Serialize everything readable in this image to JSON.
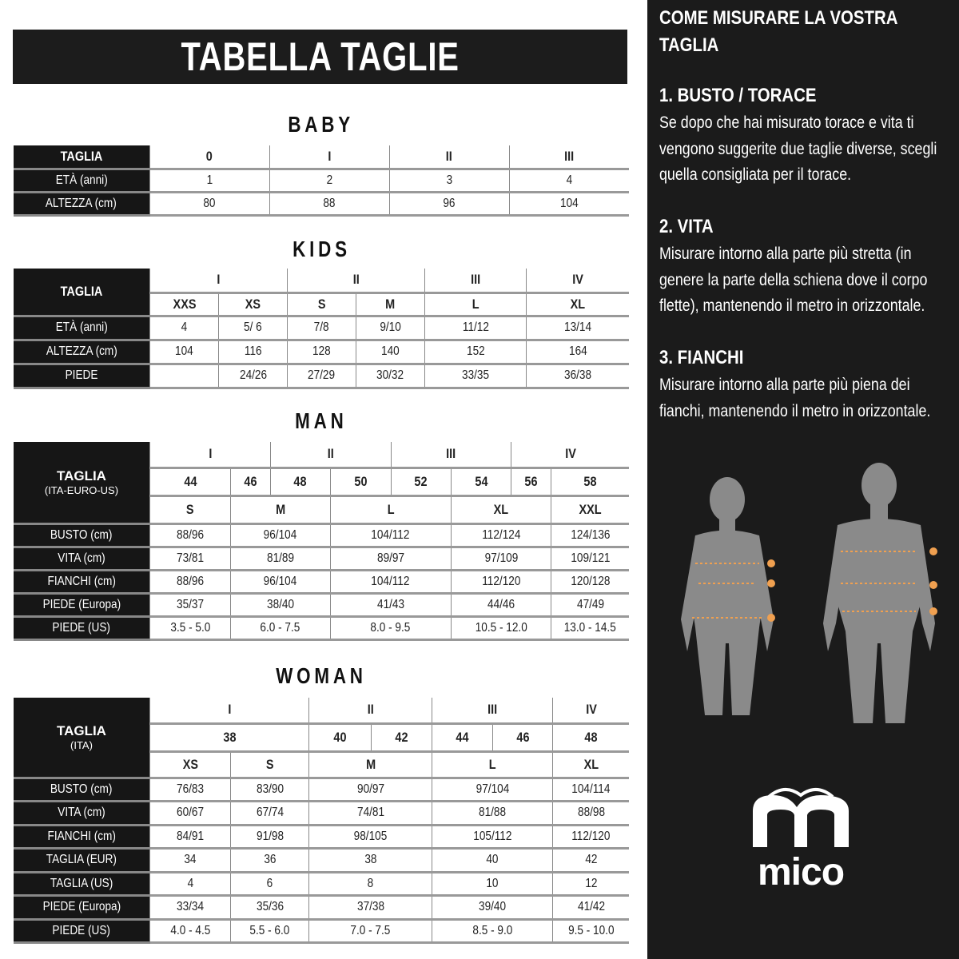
{
  "title": "TABELLA TAGLIE",
  "baby": {
    "heading": "BABY",
    "rows": [
      {
        "label": "TAGLIA",
        "cells": [
          "0",
          "I",
          "II",
          "III"
        ]
      },
      {
        "label": "ETÀ (anni)",
        "cells": [
          "1",
          "2",
          "3",
          "4"
        ]
      },
      {
        "label": "ALTEZZA (cm)",
        "cells": [
          "80",
          "88",
          "96",
          "104"
        ]
      }
    ]
  },
  "kids": {
    "heading": "KIDS",
    "taglia": "TAGLIA",
    "groups": [
      "I",
      "II",
      "III",
      "IV"
    ],
    "sizes": [
      "XXS",
      "XS",
      "S",
      "M",
      "L",
      "XL"
    ],
    "rows": [
      {
        "label": "ETÀ (anni)",
        "cells": [
          "4",
          "5/ 6",
          "7/8",
          "9/10",
          "11/12",
          "13/14"
        ]
      },
      {
        "label": "ALTEZZA (cm)",
        "cells": [
          "104",
          "116",
          "128",
          "140",
          "152",
          "164"
        ]
      },
      {
        "label": "PIEDE",
        "cells": [
          "",
          "24/26",
          "27/29",
          "30/32",
          "33/35",
          "36/38"
        ]
      }
    ]
  },
  "man": {
    "heading": "MAN",
    "taglia": "TAGLIA",
    "taglia_sub": "(ITA-EURO-US)",
    "groups": [
      "I",
      "II",
      "III",
      "IV"
    ],
    "numbers": [
      "44",
      "46",
      "48",
      "50",
      "52",
      "54",
      "56",
      "58"
    ],
    "sizes": [
      "S",
      "M",
      "L",
      "XL",
      "XXL"
    ],
    "rows": [
      {
        "label": "BUSTO (cm)",
        "cells": [
          "88/96",
          "96/104",
          "104/112",
          "112/124",
          "124/136"
        ]
      },
      {
        "label": "VITA (cm)",
        "cells": [
          "73/81",
          "81/89",
          "89/97",
          "97/109",
          "109/121"
        ]
      },
      {
        "label": "FIANCHI (cm)",
        "cells": [
          "88/96",
          "96/104",
          "104/112",
          "112/120",
          "120/128"
        ]
      },
      {
        "label": "PIEDE (Europa)",
        "cells": [
          "35/37",
          "38/40",
          "41/43",
          "44/46",
          "47/49"
        ]
      },
      {
        "label": "PIEDE (US)",
        "cells": [
          "3.5 - 5.0",
          "6.0 - 7.5",
          "8.0 - 9.5",
          "10.5 - 12.0",
          "13.0 - 14.5"
        ]
      }
    ]
  },
  "woman": {
    "heading": "WOMAN",
    "taglia": "TAGLIA",
    "taglia_sub": "(ITA)",
    "groups": [
      "I",
      "II",
      "III",
      "IV"
    ],
    "numbers": [
      "38",
      "40",
      "42",
      "44",
      "46",
      "48"
    ],
    "sizes": [
      "XS",
      "S",
      "M",
      "L",
      "XL"
    ],
    "rows": [
      {
        "label": "BUSTO (cm)",
        "cells": [
          "76/83",
          "83/90",
          "90/97",
          "97/104",
          "104/114"
        ]
      },
      {
        "label": "VITA (cm)",
        "cells": [
          "60/67",
          "67/74",
          "74/81",
          "81/88",
          "88/98"
        ]
      },
      {
        "label": "FIANCHI (cm)",
        "cells": [
          "84/91",
          "91/98",
          "98/105",
          "105/112",
          "112/120"
        ]
      },
      {
        "label": "TAGLIA (EUR)",
        "cells": [
          "34",
          "36",
          "38",
          "40",
          "42"
        ]
      },
      {
        "label": "TAGLIA (US)",
        "cells": [
          "4",
          "6",
          "8",
          "10",
          "12"
        ]
      },
      {
        "label": "PIEDE (Europa)",
        "cells": [
          "33/34",
          "35/36",
          "37/38",
          "39/40",
          "41/42"
        ]
      },
      {
        "label": "PIEDE (US)",
        "cells": [
          "4.0 - 4.5",
          "5.5 - 6.0",
          "7.0 - 7.5",
          "8.5 - 9.0",
          "9.5 - 10.0"
        ]
      }
    ]
  },
  "guide": {
    "title": "COME MISURARE LA VOSTRA TAGLIA",
    "sections": [
      {
        "heading": "1. BUSTO / TORACE",
        "text": "Se dopo che hai misurato torace e vita ti vengono suggerite due taglie diverse, scegli quella consigliata per il torace."
      },
      {
        "heading": "2. VITA",
        "text": "Misurare intorno alla parte più stretta (in genere la parte della schiena dove il corpo flette), mantenendo il metro in orizzontale."
      },
      {
        "heading": "3. FIANCHI",
        "text": "Misurare intorno alla parte più piena dei fianchi, mantenendo il metro in orizzontale."
      }
    ]
  },
  "logo": {
    "text": "mico"
  },
  "colors": {
    "panel": "#1b1b1b",
    "marker": "#f0a050",
    "silhouette": "#8a8a8a"
  }
}
